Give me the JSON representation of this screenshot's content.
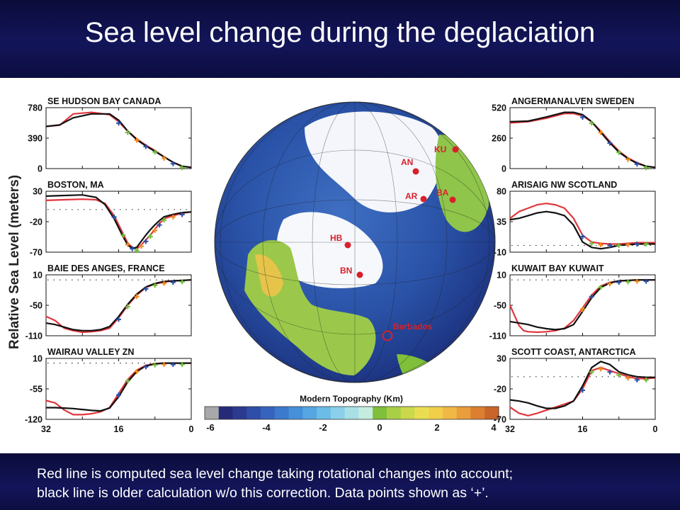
{
  "title": "Sea level change during the deglaciation",
  "caption_lines": [
    "Red line is computed sea level change taking rotational changes into account;",
    "black line is older calculation w/o this correction. Data points shown as ‘+’."
  ],
  "ylabel": "Relative Sea Level (meters)",
  "colors": {
    "computed": "#e0363c",
    "older": "#111111",
    "data_orange": "#f08a1c",
    "data_green": "#6fbf3a",
    "data_blue": "#2a4fa8",
    "marker": "#d8202a"
  },
  "map": {
    "colorbar_title": "Modern Topography (Km)",
    "colorbar_ticks": [
      "-6",
      "-4",
      "-2",
      "0",
      "2",
      "4"
    ],
    "sites": [
      {
        "label": "KU"
      },
      {
        "label": "AN"
      },
      {
        "label": "AR"
      },
      {
        "label": "BA"
      },
      {
        "label": "HB"
      },
      {
        "label": "BN"
      },
      {
        "label": "Barbados"
      }
    ]
  },
  "chart_data": [
    {
      "type": "line",
      "title": "SE HUDSON BAY CANADA",
      "ylim": [
        0,
        780
      ],
      "ytick_labels": [
        "780",
        "390",
        "0"
      ],
      "xlim": [
        32,
        0
      ],
      "series": [
        {
          "color": "computed",
          "x": [
            32,
            29,
            26,
            22,
            18,
            16,
            14,
            12,
            10,
            8,
            6,
            4,
            2,
            0
          ],
          "y": [
            540,
            555,
            700,
            720,
            690,
            600,
            480,
            380,
            300,
            230,
            150,
            80,
            30,
            15
          ]
        },
        {
          "color": "older",
          "x": [
            32,
            29,
            26,
            22,
            18,
            16,
            14,
            12,
            10,
            8,
            6,
            4,
            2,
            0
          ],
          "y": [
            540,
            560,
            650,
            700,
            700,
            620,
            480,
            370,
            290,
            220,
            150,
            80,
            30,
            15
          ]
        }
      ]
    },
    {
      "type": "line",
      "title": "BOSTON, MA",
      "ylim": [
        -70,
        30
      ],
      "ytick_labels": [
        "30",
        "-20",
        "-70"
      ],
      "xlim": [
        32,
        0
      ],
      "series": [
        {
          "color": "computed",
          "x": [
            32,
            28,
            24,
            21,
            19,
            17,
            15,
            14,
            13,
            12,
            11,
            10,
            9,
            8,
            7,
            6,
            4,
            2,
            0
          ],
          "y": [
            15,
            16,
            17,
            16,
            10,
            -10,
            -40,
            -55,
            -62,
            -65,
            -58,
            -50,
            -42,
            -32,
            -23,
            -15,
            -10,
            -6,
            -4
          ]
        },
        {
          "color": "older",
          "x": [
            32,
            28,
            24,
            21,
            19,
            17,
            15,
            14,
            13,
            12,
            11,
            10,
            9,
            8,
            7,
            6,
            4,
            2,
            0
          ],
          "y": [
            22,
            23,
            24,
            20,
            8,
            -15,
            -45,
            -58,
            -64,
            -62,
            -52,
            -42,
            -33,
            -25,
            -18,
            -12,
            -8,
            -5,
            -4
          ]
        }
      ]
    },
    {
      "type": "line",
      "title": "BAIE DES ANGES, FRANCE",
      "ylim": [
        -110,
        10
      ],
      "ytick_labels": [
        "10",
        "-50",
        "-110"
      ],
      "xlim": [
        32,
        0
      ],
      "series": [
        {
          "color": "computed",
          "x": [
            32,
            30,
            28,
            26,
            24,
            22,
            20,
            18,
            16,
            14,
            12,
            10,
            8,
            6,
            4,
            2,
            0
          ],
          "y": [
            -72,
            -80,
            -95,
            -100,
            -103,
            -102,
            -100,
            -95,
            -75,
            -50,
            -30,
            -15,
            -8,
            -4,
            -2,
            -1,
            0
          ]
        },
        {
          "color": "older",
          "x": [
            32,
            30,
            28,
            26,
            24,
            22,
            20,
            18,
            16,
            14,
            12,
            10,
            8,
            6,
            4,
            2,
            0
          ],
          "y": [
            -85,
            -88,
            -93,
            -98,
            -100,
            -100,
            -98,
            -92,
            -72,
            -48,
            -28,
            -14,
            -7,
            -3,
            -2,
            -1,
            0
          ]
        }
      ]
    },
    {
      "type": "line",
      "title": "WAIRAU VALLEY ZN",
      "ylim": [
        -120,
        10
      ],
      "ytick_labels": [
        "10",
        "-55",
        "-120"
      ],
      "xlim": [
        32,
        0
      ],
      "series": [
        {
          "color": "computed",
          "x": [
            32,
            30,
            28,
            26,
            24,
            22,
            20,
            18,
            16,
            14,
            12,
            10,
            8,
            6,
            4,
            2,
            0
          ],
          "y": [
            -80,
            -85,
            -100,
            -110,
            -110,
            -108,
            -104,
            -95,
            -65,
            -35,
            -15,
            -5,
            -1,
            0,
            0,
            0,
            0
          ]
        },
        {
          "color": "older",
          "x": [
            32,
            30,
            28,
            26,
            24,
            22,
            20,
            18,
            16,
            14,
            12,
            10,
            8,
            6,
            4,
            2,
            0
          ],
          "y": [
            -95,
            -95,
            -96,
            -97,
            -99,
            -101,
            -102,
            -96,
            -72,
            -40,
            -18,
            -6,
            -2,
            0,
            0,
            0,
            0
          ]
        }
      ]
    },
    {
      "type": "line",
      "title": "ANGERMANALVEN SWEDEN",
      "ylim": [
        0,
        520
      ],
      "ytick_labels": [
        "520",
        "260",
        "0"
      ],
      "xlim": [
        32,
        0
      ],
      "series": [
        {
          "color": "computed",
          "x": [
            32,
            28,
            24,
            20,
            18,
            16,
            14,
            12,
            10,
            8,
            6,
            4,
            2,
            0
          ],
          "y": [
            390,
            400,
            430,
            470,
            470,
            450,
            400,
            320,
            230,
            150,
            90,
            50,
            20,
            10
          ]
        },
        {
          "color": "older",
          "x": [
            32,
            28,
            24,
            20,
            18,
            16,
            14,
            12,
            10,
            8,
            6,
            4,
            2,
            0
          ],
          "y": [
            400,
            405,
            440,
            480,
            480,
            460,
            400,
            310,
            220,
            140,
            85,
            45,
            20,
            10
          ]
        }
      ]
    },
    {
      "type": "line",
      "title": "ARISAIG NW SCOTLAND",
      "ylim": [
        -10,
        80
      ],
      "ytick_labels": [
        "80",
        "35",
        "-10"
      ],
      "xlim": [
        32,
        0
      ],
      "series": [
        {
          "color": "computed",
          "x": [
            32,
            30,
            28,
            26,
            24,
            22,
            20,
            18,
            16,
            14,
            12,
            10,
            8,
            6,
            4,
            2,
            0
          ],
          "y": [
            40,
            50,
            55,
            60,
            62,
            60,
            55,
            40,
            15,
            5,
            3,
            2,
            2,
            3,
            4,
            4,
            4
          ]
        },
        {
          "color": "older",
          "x": [
            32,
            30,
            28,
            26,
            24,
            22,
            20,
            18,
            16,
            14,
            12,
            10,
            8,
            6,
            4,
            2,
            0
          ],
          "y": [
            38,
            40,
            44,
            48,
            50,
            48,
            44,
            30,
            5,
            -3,
            -5,
            -3,
            0,
            1,
            2,
            2,
            2
          ]
        }
      ]
    },
    {
      "type": "line",
      "title": "KUWAIT BAY KUWAIT",
      "ylim": [
        -110,
        10
      ],
      "ytick_labels": [
        "10",
        "-50",
        "-110"
      ],
      "xlim": [
        32,
        0
      ],
      "series": [
        {
          "color": "computed",
          "x": [
            32,
            31,
            30,
            29,
            28,
            26,
            24,
            22,
            20,
            18,
            16,
            14,
            12,
            10,
            8,
            6,
            4,
            2,
            0
          ],
          "y": [
            -50,
            -70,
            -90,
            -100,
            -102,
            -103,
            -102,
            -100,
            -95,
            -80,
            -55,
            -30,
            -12,
            -5,
            -2,
            -1,
            0,
            0,
            0
          ]
        },
        {
          "color": "older",
          "x": [
            32,
            30,
            28,
            26,
            24,
            22,
            20,
            18,
            16,
            14,
            12,
            10,
            8,
            6,
            4,
            2,
            0
          ],
          "y": [
            -82,
            -85,
            -88,
            -93,
            -96,
            -98,
            -96,
            -88,
            -62,
            -35,
            -15,
            -6,
            -2,
            -1,
            0,
            0,
            0
          ]
        }
      ]
    },
    {
      "type": "line",
      "title": "SCOTT COAST, ANTARCTICA",
      "ylim": [
        -70,
        30
      ],
      "ytick_labels": [
        "30",
        "-20",
        "-70"
      ],
      "xlim": [
        32,
        0
      ],
      "series": [
        {
          "color": "computed",
          "x": [
            32,
            30,
            28,
            26,
            24,
            22,
            20,
            18,
            16,
            14,
            12,
            10,
            8,
            6,
            4,
            2,
            0
          ],
          "y": [
            -50,
            -60,
            -64,
            -60,
            -55,
            -50,
            -45,
            -40,
            -20,
            10,
            15,
            10,
            5,
            0,
            -3,
            -3,
            -2
          ]
        },
        {
          "color": "older",
          "x": [
            32,
            30,
            28,
            26,
            24,
            22,
            20,
            18,
            16,
            14,
            12,
            10,
            8,
            6,
            4,
            2,
            0
          ],
          "y": [
            -38,
            -40,
            -43,
            -48,
            -52,
            -52,
            -48,
            -40,
            -15,
            15,
            25,
            20,
            8,
            3,
            0,
            -1,
            -1
          ]
        }
      ]
    }
  ],
  "xtick_labels": [
    "32",
    "16",
    "0"
  ]
}
